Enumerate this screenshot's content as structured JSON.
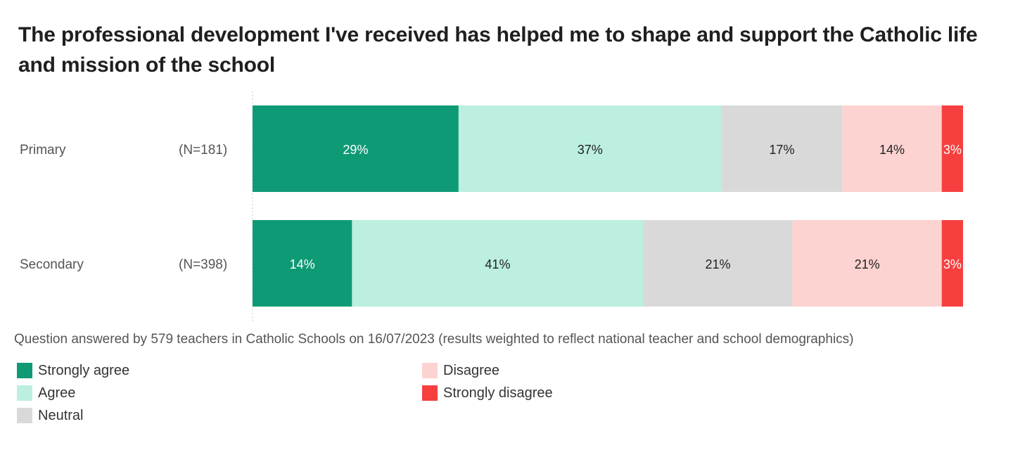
{
  "title": "The professional development I've received has helped me to shape and support the Catholic life and mission of the school",
  "note": "Question answered by 579 teachers in Catholic Schools on 16/07/2023 (results weighted to reflect national teacher and school demographics)",
  "chart_data": {
    "type": "bar",
    "orientation": "horizontal",
    "stacked": true,
    "unit": "%",
    "categories": [
      "Primary",
      "Secondary"
    ],
    "category_counts": [
      "(N=181)",
      "(N=398)"
    ],
    "series": [
      {
        "name": "Strongly agree",
        "color": "#0f9a76",
        "label_color": "#ffffff",
        "values": [
          29,
          14
        ]
      },
      {
        "name": "Agree",
        "color": "#bcefe0",
        "label_color": "#222222",
        "values": [
          37,
          41
        ]
      },
      {
        "name": "Neutral",
        "color": "#d9d9d9",
        "label_color": "#222222",
        "values": [
          17,
          21
        ]
      },
      {
        "name": "Disagree",
        "color": "#fcd3d1",
        "label_color": "#222222",
        "values": [
          14,
          21
        ]
      },
      {
        "name": "Strongly disagree",
        "color": "#f64040",
        "label_color": "#ffffff",
        "values": [
          3,
          3
        ]
      }
    ],
    "legend_position": "bottom",
    "grid": false
  }
}
